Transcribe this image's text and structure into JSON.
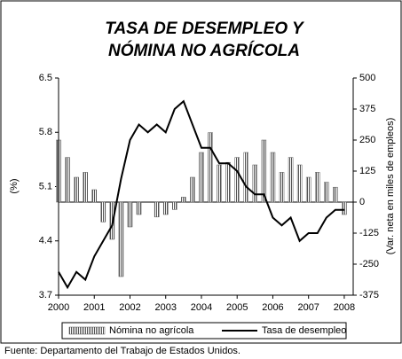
{
  "chart_data": {
    "type": "bar",
    "title": [
      "TASA DE DESEMPLEO Y",
      "NÓMINA NO AGRÍCOLA"
    ],
    "ylabel": "(%)",
    "y2label": "(Var. neta en miles de empleos)",
    "source": "Fuente: Departamento del Trabajo de Estados Unidos.",
    "x": [
      2000,
      2000.25,
      2000.5,
      2000.75,
      2001,
      2001.25,
      2001.5,
      2001.75,
      2002,
      2002.25,
      2002.5,
      2002.75,
      2003,
      2003.25,
      2003.5,
      2003.75,
      2004,
      2004.25,
      2004.5,
      2004.75,
      2005,
      2005.25,
      2005.5,
      2005.75,
      2006,
      2006.25,
      2006.5,
      2006.75,
      2007,
      2007.25,
      2007.5,
      2007.75,
      2008
    ],
    "xlim": [
      2000,
      2008.25
    ],
    "xticks": [
      2000,
      2001,
      2002,
      2003,
      2004,
      2005,
      2006,
      2007,
      2008
    ],
    "ylim": [
      3.7,
      6.5
    ],
    "yticks": [
      3.7,
      4.4,
      5.1,
      5.8,
      6.5
    ],
    "y2lim": [
      -375,
      500
    ],
    "y2ticks": [
      -375,
      -250,
      -125,
      0,
      125,
      250,
      375,
      500
    ],
    "series": [
      {
        "name": "Nómina no agrícola",
        "type": "bar",
        "axis": "y2",
        "color": "#555555",
        "values": [
          250,
          180,
          100,
          120,
          50,
          -80,
          -150,
          -300,
          -100,
          -50,
          0,
          -60,
          -50,
          -30,
          20,
          100,
          200,
          280,
          150,
          160,
          180,
          200,
          150,
          250,
          200,
          120,
          180,
          150,
          100,
          120,
          80,
          60,
          -50
        ]
      },
      {
        "name": "Tasa de desempleo",
        "type": "line",
        "color": "#000000",
        "values": [
          4.0,
          3.8,
          4.0,
          3.9,
          4.2,
          4.4,
          4.6,
          5.2,
          5.7,
          5.9,
          5.8,
          5.9,
          5.8,
          6.1,
          6.2,
          5.9,
          5.6,
          5.6,
          5.4,
          5.4,
          5.3,
          5.1,
          5.0,
          5.0,
          4.7,
          4.6,
          4.7,
          4.4,
          4.5,
          4.5,
          4.7,
          4.8,
          4.8
        ]
      }
    ]
  }
}
